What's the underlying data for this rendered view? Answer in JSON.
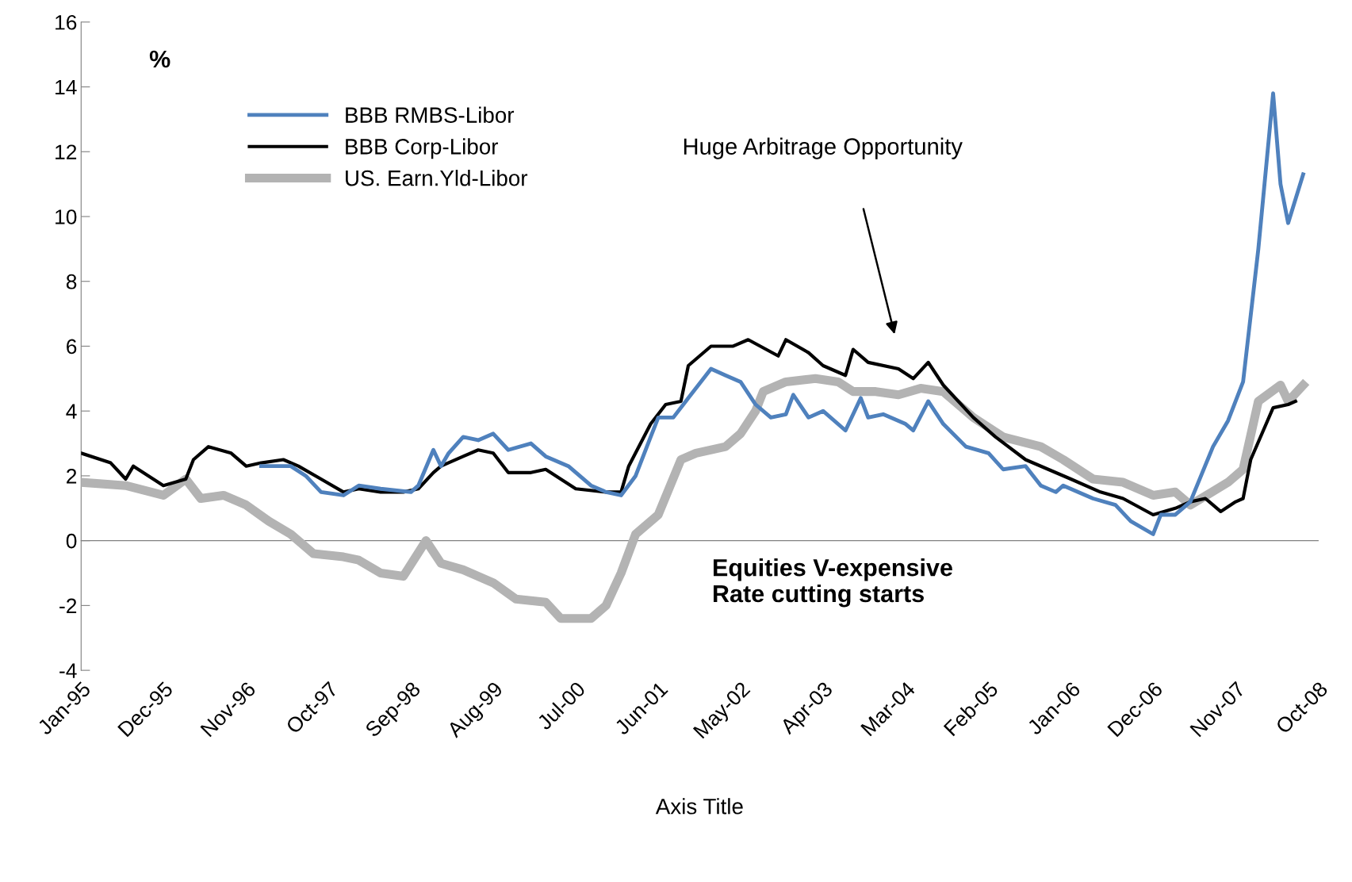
{
  "chart_data": {
    "type": "line",
    "xlabel": "Axis Title",
    "ylabel": "%",
    "xlim": [
      "1995-01",
      "2008-10"
    ],
    "ylim": [
      -4,
      16
    ],
    "yticks": [
      -4,
      -2,
      0,
      2,
      4,
      6,
      8,
      10,
      12,
      14,
      16
    ],
    "xticks": [
      {
        "value": "1995-01",
        "label": "Jan-95"
      },
      {
        "value": "1995-12",
        "label": "Dec-95"
      },
      {
        "value": "1996-11",
        "label": "Nov-96"
      },
      {
        "value": "1997-10",
        "label": "Oct-97"
      },
      {
        "value": "1998-09",
        "label": "Sep-98"
      },
      {
        "value": "1999-08",
        "label": "Aug-99"
      },
      {
        "value": "2000-07",
        "label": "Jul-00"
      },
      {
        "value": "2001-06",
        "label": "Jun-01"
      },
      {
        "value": "2002-05",
        "label": "May-02"
      },
      {
        "value": "2003-04",
        "label": "Apr-03"
      },
      {
        "value": "2004-03",
        "label": "Mar-04"
      },
      {
        "value": "2005-02",
        "label": "Feb-05"
      },
      {
        "value": "2006-01",
        "label": "Jan-06"
      },
      {
        "value": "2006-12",
        "label": "Dec-06"
      },
      {
        "value": "2007-11",
        "label": "Nov-07"
      },
      {
        "value": "2008-10",
        "label": "Oct-08"
      }
    ],
    "legend": "top left",
    "marker": "none",
    "line_style": "solid",
    "annotations": [
      "Huge Arbitrage Opportunity",
      "Equities V-expensive\nRate cutting starts"
    ],
    "series": [
      {
        "name": "BBB RMBS-Libor",
        "color": "#4f81bd",
        "x": [
          "1997-01",
          "1997-05",
          "1997-07",
          "1997-09",
          "1997-12",
          "1998-02",
          "1998-05",
          "1998-09",
          "1998-10",
          "1998-12",
          "1999-01",
          "1999-02",
          "1999-04",
          "1999-06",
          "1999-08",
          "1999-10",
          "2000-01",
          "2000-03",
          "2000-06",
          "2000-09",
          "2000-11",
          "2001-01",
          "2001-03",
          "2001-05",
          "2001-06",
          "2001-08",
          "2001-10",
          "2002-01",
          "2002-03",
          "2002-05",
          "2002-07",
          "2002-09",
          "2002-11",
          "2002-12",
          "2003-02",
          "2003-04",
          "2003-07",
          "2003-09",
          "2003-10",
          "2003-12",
          "2004-03",
          "2004-04",
          "2004-06",
          "2004-08",
          "2004-11",
          "2005-02",
          "2005-04",
          "2005-07",
          "2005-09",
          "2005-11",
          "2005-12",
          "2006-04",
          "2006-07",
          "2006-09",
          "2006-12",
          "2007-01",
          "2007-03",
          "2007-05",
          "2007-08",
          "2007-10",
          "2007-12",
          "2008-02",
          "2008-04",
          "2008-05",
          "2008-06",
          "2008-08"
        ],
        "values": [
          2.3,
          2.3,
          2.0,
          1.5,
          1.4,
          1.7,
          1.6,
          1.5,
          1.7,
          2.8,
          2.3,
          2.7,
          3.2,
          3.1,
          3.3,
          2.8,
          3.0,
          2.6,
          2.3,
          1.7,
          1.5,
          1.4,
          2.0,
          3.2,
          3.8,
          3.8,
          4.4,
          5.3,
          5.1,
          4.9,
          4.2,
          3.8,
          3.9,
          4.5,
          3.8,
          4.0,
          3.4,
          4.4,
          3.8,
          3.9,
          3.6,
          3.4,
          4.3,
          3.6,
          2.9,
          2.7,
          2.2,
          2.3,
          1.7,
          1.5,
          1.7,
          1.3,
          1.1,
          0.6,
          0.2,
          0.8,
          0.8,
          1.2,
          2.9,
          3.7,
          4.9,
          9.0,
          13.8,
          11.0,
          9.8,
          11.3
        ]
      },
      {
        "name": "BBB Corp-Libor",
        "color": "#000000",
        "x": [
          "1995-01",
          "1995-05",
          "1995-07",
          "1995-08",
          "1995-12",
          "1996-03",
          "1996-04",
          "1996-06",
          "1996-09",
          "1996-11",
          "1997-01",
          "1997-04",
          "1997-06",
          "1997-09",
          "1997-12",
          "1998-02",
          "1998-05",
          "1998-08",
          "1998-10",
          "1998-12",
          "1999-01",
          "1999-04",
          "1999-06",
          "1999-08",
          "1999-10",
          "2000-01",
          "2000-03",
          "2000-05",
          "2000-07",
          "2000-11",
          "2001-01",
          "2001-02",
          "2001-05",
          "2001-07",
          "2001-09",
          "2001-10",
          "2002-01",
          "2002-04",
          "2002-06",
          "2002-10",
          "2002-11",
          "2003-02",
          "2003-04",
          "2003-07",
          "2003-08",
          "2003-10",
          "2004-02",
          "2004-04",
          "2004-06",
          "2004-08",
          "2004-12",
          "2005-03",
          "2005-07",
          "2005-10",
          "2006-01",
          "2006-05",
          "2006-08",
          "2006-12",
          "2007-03",
          "2007-05",
          "2007-07",
          "2007-09",
          "2007-11",
          "2007-12",
          "2008-01",
          "2008-04",
          "2008-06",
          "2008-07"
        ],
        "values": [
          2.7,
          2.4,
          1.9,
          2.3,
          1.7,
          1.9,
          2.5,
          2.9,
          2.7,
          2.3,
          2.4,
          2.5,
          2.3,
          1.9,
          1.5,
          1.6,
          1.5,
          1.5,
          1.6,
          2.1,
          2.3,
          2.6,
          2.8,
          2.7,
          2.1,
          2.1,
          2.2,
          1.9,
          1.6,
          1.5,
          1.5,
          2.3,
          3.6,
          4.2,
          4.3,
          5.4,
          6.0,
          6.0,
          6.2,
          5.7,
          6.2,
          5.8,
          5.4,
          5.1,
          5.9,
          5.5,
          5.3,
          5.0,
          5.5,
          4.8,
          3.8,
          3.2,
          2.5,
          2.2,
          1.9,
          1.5,
          1.3,
          0.8,
          1.0,
          1.2,
          1.3,
          0.9,
          1.2,
          1.3,
          2.5,
          4.1,
          4.2,
          4.3
        ]
      },
      {
        "name": "US. Earn.Yld-Libor",
        "color": "#b3b3b3",
        "x": [
          "1995-01",
          "1995-07",
          "1995-12",
          "1996-03",
          "1996-05",
          "1996-08",
          "1996-11",
          "1997-02",
          "1997-05",
          "1997-08",
          "1997-12",
          "1998-02",
          "1998-05",
          "1998-08",
          "1998-11",
          "1999-01",
          "1999-04",
          "1999-08",
          "1999-11",
          "2000-03",
          "2000-05",
          "2000-09",
          "2000-11",
          "2001-01",
          "2001-03",
          "2001-06",
          "2001-09",
          "2001-11",
          "2002-03",
          "2002-05",
          "2002-07",
          "2002-08",
          "2002-11",
          "2003-03",
          "2003-06",
          "2003-08",
          "2003-11",
          "2004-02",
          "2004-05",
          "2004-08",
          "2004-12",
          "2005-04",
          "2005-09",
          "2005-12",
          "2006-04",
          "2006-08",
          "2006-12",
          "2007-03",
          "2007-05",
          "2007-10",
          "2007-12",
          "2008-02",
          "2008-05",
          "2008-06",
          "2008-08"
        ],
        "values": [
          1.8,
          1.7,
          1.4,
          1.9,
          1.3,
          1.4,
          1.1,
          0.6,
          0.2,
          -0.4,
          -0.5,
          -0.6,
          -1.0,
          -1.1,
          0.0,
          -0.7,
          -0.9,
          -1.3,
          -1.8,
          -1.9,
          -2.4,
          -2.4,
          -2.0,
          -1.0,
          0.2,
          0.8,
          2.5,
          2.7,
          2.9,
          3.3,
          4.0,
          4.6,
          4.9,
          5.0,
          4.9,
          4.6,
          4.6,
          4.5,
          4.7,
          4.6,
          3.8,
          3.2,
          2.9,
          2.5,
          1.9,
          1.8,
          1.4,
          1.5,
          1.1,
          1.8,
          2.2,
          4.3,
          4.8,
          4.3,
          4.8
        ]
      }
    ]
  }
}
